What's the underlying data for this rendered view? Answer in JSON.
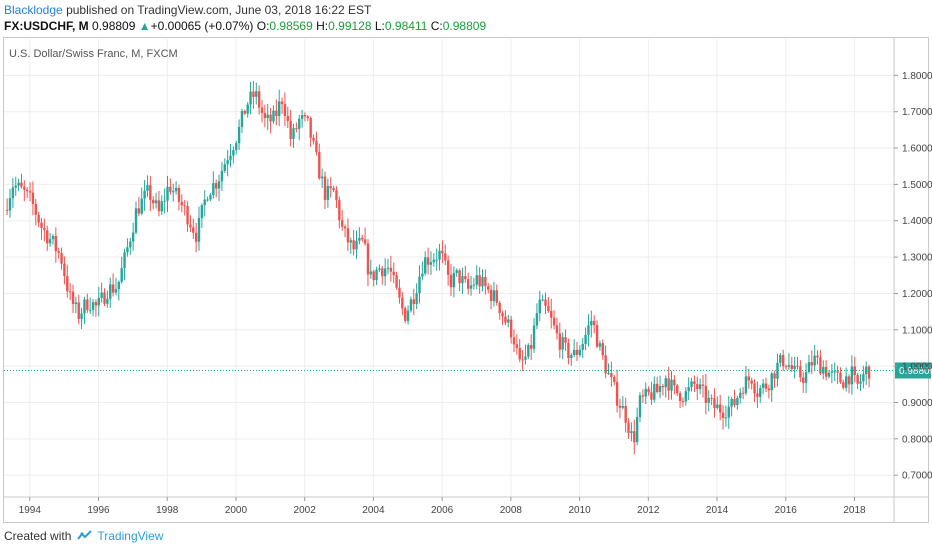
{
  "header": {
    "author": "Blacklodge",
    "published_text": "published on TradingView.com, June 03, 2018 16:22 EST",
    "symbol": "FX:USDCHF, M",
    "last": "0.98809",
    "change_arrow": "▲",
    "change": "+0.00065 (+0.07%)",
    "o_label": "O:",
    "o_val": "0.98569",
    "h_label": "H:",
    "h_val": "0.99128",
    "l_label": "L:",
    "l_val": "0.98411",
    "c_label": "C:",
    "c_val": "0.98809"
  },
  "footer": {
    "created_with": "Created with",
    "brand": "TradingView",
    "logo_icon": "tradingview-logo-icon"
  },
  "colors": {
    "up": "#26a69a",
    "down": "#ef5350",
    "last_price": "#26a69a",
    "grid": "#eeeeee"
  },
  "chart_data": {
    "type": "candlestick",
    "title": "U.S. Dollar/Swiss Franc, M, FXCM",
    "y_ticks": [
      "1.80000",
      "1.70000",
      "1.60000",
      "1.50000",
      "1.40000",
      "1.30000",
      "1.20000",
      "1.10000",
      "1.00000",
      "0.90000",
      "0.80000",
      "0.70000"
    ],
    "x_ticks": [
      "1994",
      "1996",
      "1998",
      "2000",
      "2002",
      "2004",
      "2006",
      "2008",
      "2010",
      "2012",
      "2014",
      "2016",
      "2018"
    ],
    "last_price_label": "0.98809",
    "last_price": 0.98809,
    "ylim": [
      0.64,
      1.9
    ],
    "xlim": [
      1993.25,
      2019.15
    ],
    "grid": true,
    "path": [
      [
        1993.3,
        1.43
      ],
      [
        1993.55,
        1.5
      ],
      [
        1993.85,
        1.48
      ],
      [
        1994.1,
        1.45
      ],
      [
        1994.4,
        1.38
      ],
      [
        1994.7,
        1.34
      ],
      [
        1994.95,
        1.3
      ],
      [
        1995.2,
        1.19
      ],
      [
        1995.45,
        1.14
      ],
      [
        1995.75,
        1.18
      ],
      [
        1996.0,
        1.16
      ],
      [
        1996.3,
        1.21
      ],
      [
        1996.6,
        1.22
      ],
      [
        1996.9,
        1.33
      ],
      [
        1997.15,
        1.43
      ],
      [
        1997.5,
        1.48
      ],
      [
        1997.8,
        1.42
      ],
      [
        1998.1,
        1.5
      ],
      [
        1998.35,
        1.46
      ],
      [
        1998.6,
        1.42
      ],
      [
        1998.9,
        1.36
      ],
      [
        1999.2,
        1.48
      ],
      [
        1999.5,
        1.51
      ],
      [
        1999.8,
        1.58
      ],
      [
        2000.1,
        1.64
      ],
      [
        2000.35,
        1.72
      ],
      [
        2000.6,
        1.75
      ],
      [
        2000.9,
        1.67
      ],
      [
        2001.15,
        1.68
      ],
      [
        2001.4,
        1.74
      ],
      [
        2001.65,
        1.62
      ],
      [
        2001.9,
        1.68
      ],
      [
        2002.15,
        1.66
      ],
      [
        2002.4,
        1.56
      ],
      [
        2002.65,
        1.47
      ],
      [
        2002.9,
        1.48
      ],
      [
        2003.15,
        1.37
      ],
      [
        2003.45,
        1.32
      ],
      [
        2003.75,
        1.34
      ],
      [
        2003.95,
        1.24
      ],
      [
        2004.2,
        1.27
      ],
      [
        2004.5,
        1.27
      ],
      [
        2004.75,
        1.19
      ],
      [
        2004.95,
        1.14
      ],
      [
        2005.2,
        1.19
      ],
      [
        2005.5,
        1.29
      ],
      [
        2005.75,
        1.3
      ],
      [
        2006.0,
        1.31
      ],
      [
        2006.25,
        1.23
      ],
      [
        2006.5,
        1.25
      ],
      [
        2006.8,
        1.21
      ],
      [
        2007.05,
        1.24
      ],
      [
        2007.35,
        1.21
      ],
      [
        2007.65,
        1.18
      ],
      [
        2007.85,
        1.13
      ],
      [
        2008.1,
        1.09
      ],
      [
        2008.3,
        1.0
      ],
      [
        2008.6,
        1.04
      ],
      [
        2008.85,
        1.17
      ],
      [
        2009.1,
        1.15
      ],
      [
        2009.4,
        1.08
      ],
      [
        2009.65,
        1.04
      ],
      [
        2009.9,
        1.03
      ],
      [
        2010.15,
        1.07
      ],
      [
        2010.4,
        1.13
      ],
      [
        2010.65,
        1.04
      ],
      [
        2010.9,
        0.97
      ],
      [
        2011.15,
        0.91
      ],
      [
        2011.4,
        0.86
      ],
      [
        2011.6,
        0.79
      ],
      [
        2011.8,
        0.9
      ],
      [
        2012.05,
        0.92
      ],
      [
        2012.3,
        0.93
      ],
      [
        2012.55,
        0.97
      ],
      [
        2012.8,
        0.93
      ],
      [
        2013.1,
        0.92
      ],
      [
        2013.4,
        0.95
      ],
      [
        2013.65,
        0.92
      ],
      [
        2013.9,
        0.89
      ],
      [
        2014.2,
        0.88
      ],
      [
        2014.5,
        0.89
      ],
      [
        2014.8,
        0.95
      ],
      [
        2015.05,
        0.97
      ],
      [
        2015.2,
        0.93
      ],
      [
        2015.5,
        0.95
      ],
      [
        2015.8,
        1.0
      ],
      [
        2016.0,
        1.02
      ],
      [
        2016.3,
        0.98
      ],
      [
        2016.6,
        0.97
      ],
      [
        2016.85,
        1.02
      ],
      [
        2017.1,
        1.0
      ],
      [
        2017.4,
        0.97
      ],
      [
        2017.7,
        0.96
      ],
      [
        2017.95,
        0.98
      ],
      [
        2018.1,
        0.94
      ],
      [
        2018.4,
        0.99
      ]
    ]
  }
}
